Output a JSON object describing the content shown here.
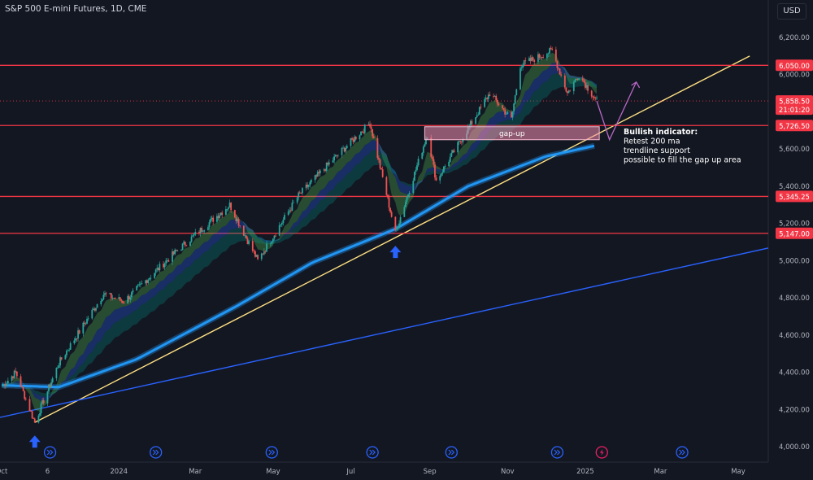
{
  "header": {
    "symbol_label": "S&P 500 E-mini Futures, 1D, CME",
    "currency": "USD"
  },
  "colors": {
    "background": "#131722",
    "up_candle": "#26a69a",
    "down_candle": "#ef5350",
    "level_line": "#f23645",
    "trendline": "#ffe082",
    "long_trendline": "#2962ff",
    "ma200": "#2196f3",
    "projection": "#ba68c8"
  },
  "chart_data": {
    "type": "candlestick",
    "title": "S&P 500 E-mini Futures, 1D, CME",
    "ylim": [
      3850,
      6280
    ],
    "y_ticks": [
      "4,000.00",
      "4,200.00",
      "4,400.00",
      "4,600.00",
      "4,800.00",
      "5,000.00",
      "5,200.00",
      "5,400.00",
      "5,600.00",
      "5,800.00",
      "6,000.00",
      "6,200.00"
    ],
    "x_ticks": [
      {
        "label": "Oct",
        "date": "2023-10-01"
      },
      {
        "label": "6",
        "date": "2023-11-06"
      },
      {
        "label": "2024",
        "date": "2024-01-01"
      },
      {
        "label": "Mar",
        "date": "2024-03-01"
      },
      {
        "label": "May",
        "date": "2024-05-01"
      },
      {
        "label": "Jul",
        "date": "2024-07-01"
      },
      {
        "label": "Sep",
        "date": "2024-09-01"
      },
      {
        "label": "Nov",
        "date": "2024-11-01"
      },
      {
        "label": "2025",
        "date": "2025-01-01"
      },
      {
        "label": "Mar",
        "date": "2025-03-01"
      },
      {
        "label": "May",
        "date": "2025-05-01"
      }
    ],
    "price_path": [
      {
        "date": "2023-10-01",
        "close": 4320
      },
      {
        "date": "2023-10-12",
        "close": 4400
      },
      {
        "date": "2023-10-27",
        "close": 4130
      },
      {
        "date": "2023-11-15",
        "close": 4450
      },
      {
        "date": "2023-12-20",
        "close": 4820
      },
      {
        "date": "2024-01-05",
        "close": 4780
      },
      {
        "date": "2024-02-15",
        "close": 5050
      },
      {
        "date": "2024-03-28",
        "close": 5300
      },
      {
        "date": "2024-04-19",
        "close": 5000
      },
      {
        "date": "2024-05-21",
        "close": 5350
      },
      {
        "date": "2024-06-18",
        "close": 5550
      },
      {
        "date": "2024-07-16",
        "close": 5740
      },
      {
        "date": "2024-08-05",
        "close": 5150
      },
      {
        "date": "2024-08-30",
        "close": 5680
      },
      {
        "date": "2024-09-06",
        "close": 5430
      },
      {
        "date": "2024-10-18",
        "close": 5900
      },
      {
        "date": "2024-11-04",
        "close": 5760
      },
      {
        "date": "2024-11-11",
        "close": 6050
      },
      {
        "date": "2024-12-06",
        "close": 6130
      },
      {
        "date": "2024-12-18",
        "close": 5900
      },
      {
        "date": "2024-12-27",
        "close": 6000
      },
      {
        "date": "2025-01-10",
        "close": 5858.5
      }
    ],
    "ma200": [
      {
        "date": "2023-10-01",
        "value": 4330
      },
      {
        "date": "2023-11-15",
        "value": 4320
      },
      {
        "date": "2024-01-15",
        "value": 4470
      },
      {
        "date": "2024-04-01",
        "value": 4750
      },
      {
        "date": "2024-06-01",
        "value": 4990
      },
      {
        "date": "2024-08-05",
        "value": 5170
      },
      {
        "date": "2024-10-01",
        "value": 5400
      },
      {
        "date": "2024-12-01",
        "value": 5560
      },
      {
        "date": "2025-01-10",
        "value": 5620
      }
    ],
    "horizontal_levels": [
      {
        "label": "6,050.00",
        "value": 6050
      },
      {
        "label": "5,726.50",
        "value": 5726.5
      },
      {
        "label": "5,345.25",
        "value": 5345.25
      },
      {
        "label": "5,147.00",
        "value": 5147
      }
    ],
    "last_price": {
      "label": "5,858.50",
      "value": 5858.5,
      "countdown": "21:01:20"
    },
    "trendlines": [
      {
        "name": "yellow",
        "start": {
          "date": "2023-10-27",
          "value": 4130
        },
        "end": {
          "date": "2025-05-10",
          "value": 6100
        }
      },
      {
        "name": "blue",
        "start": {
          "date": "2023-09-25",
          "value": 4150
        },
        "end": {
          "date": "2025-06-15",
          "value": 5100
        }
      }
    ],
    "gap_zone": {
      "label": "gap-up",
      "x_start": "2024-08-28",
      "x_end": "2025-01-12",
      "y_low": 5650,
      "y_high": 5720
    },
    "annotations": {
      "lines": [
        "Bullish indicator:",
        "Retest 200 ma",
        "trendline support",
        "possible to fill the gap up area"
      ]
    },
    "projection": [
      {
        "date": "2025-01-10",
        "value": 5858.5
      },
      {
        "date": "2025-01-20",
        "value": 5650
      },
      {
        "date": "2025-02-10",
        "value": 5960
      }
    ],
    "markers": [
      {
        "type": "arrow-up",
        "date": "2023-10-27",
        "value": 4130
      },
      {
        "type": "arrow-up",
        "date": "2024-08-05",
        "value": 5150
      }
    ],
    "event_icons": [
      {
        "type": "forward-icon",
        "date": "2023-11-08"
      },
      {
        "type": "forward-icon",
        "date": "2024-01-30"
      },
      {
        "type": "forward-icon",
        "date": "2024-04-30"
      },
      {
        "type": "forward-icon",
        "date": "2024-07-18"
      },
      {
        "type": "forward-icon",
        "date": "2024-09-18"
      },
      {
        "type": "forward-icon",
        "date": "2024-12-10"
      },
      {
        "type": "lightning-icon",
        "date": "2025-01-14"
      },
      {
        "type": "forward-icon",
        "date": "2025-03-18"
      }
    ]
  }
}
